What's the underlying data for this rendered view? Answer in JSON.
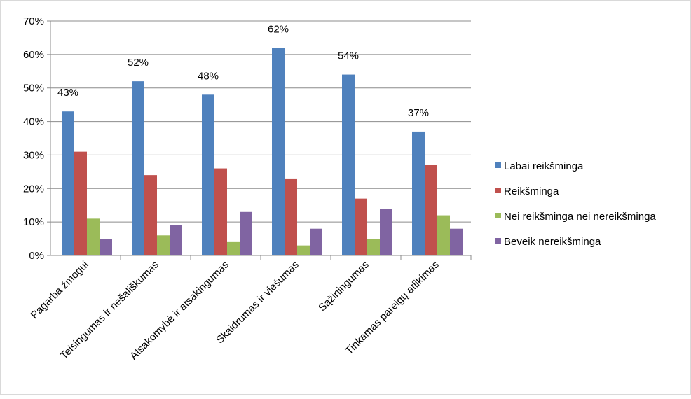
{
  "chart_data": {
    "type": "bar",
    "categories": [
      "Pagarba žmogui",
      "Teisingumas ir nešališkumas",
      "Atsakomybė ir atsakingumas",
      "Skaidrumas ir viešumas",
      "Sąžiningumas",
      "Tinkamas pareigų atlikimas"
    ],
    "series": [
      {
        "name": "Labai reikšminga",
        "color": "#4F81BD",
        "values": [
          43,
          52,
          48,
          62,
          54,
          37
        ]
      },
      {
        "name": "Reikšminga",
        "color": "#C0504D",
        "values": [
          31,
          24,
          26,
          23,
          17,
          27
        ]
      },
      {
        "name": "Nei reikšminga nei nereikšminga",
        "color": "#9BBB59",
        "values": [
          11,
          6,
          4,
          3,
          5,
          12
        ]
      },
      {
        "name": "Beveik nereikšminga",
        "color": "#8064A2",
        "values": [
          5,
          9,
          13,
          8,
          14,
          8
        ]
      }
    ],
    "data_labels": [
      "43%",
      "52%",
      "48%",
      "62%",
      "54%",
      "37%"
    ],
    "y_ticks": [
      "0%",
      "10%",
      "20%",
      "30%",
      "40%",
      "50%",
      "60%",
      "70%"
    ],
    "ylim": [
      0,
      70
    ],
    "y_unit": "%",
    "grid": true,
    "legend_position": "right"
  }
}
